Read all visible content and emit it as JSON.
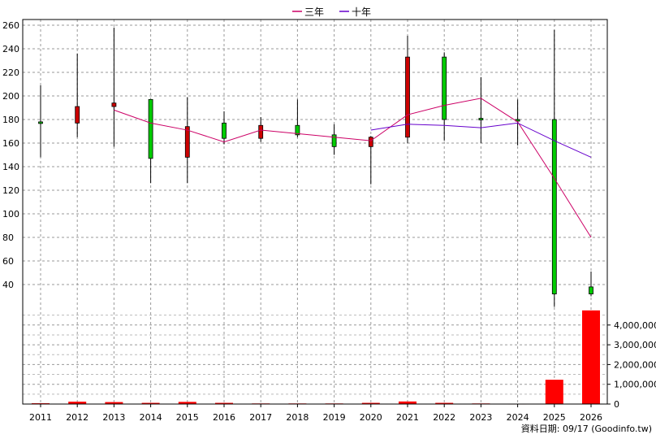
{
  "chart_data": {
    "type": "candlestick",
    "years": [
      "2011",
      "2012",
      "2013",
      "2014",
      "2015",
      "2016",
      "2017",
      "2018",
      "2019",
      "2020",
      "2021",
      "2022",
      "2023",
      "2024",
      "2025",
      "2026"
    ],
    "price_axis": {
      "ylim": [
        20,
        262
      ],
      "ticks": [
        40,
        60,
        80,
        100,
        120,
        140,
        160,
        180,
        200,
        220,
        240,
        260
      ]
    },
    "volume_axis": {
      "ylim": [
        0,
        5400000
      ],
      "ticks": [
        0,
        1000000,
        2000000,
        3000000,
        4000000
      ],
      "tick_labels": [
        "0",
        "1,000,000",
        "2,000,000",
        "3,000,000",
        "4,000,000"
      ]
    },
    "candles": [
      {
        "year": "2011",
        "open": 178,
        "close": 177,
        "high": 209,
        "low": 148,
        "color": "#00cc00"
      },
      {
        "year": "2012",
        "open": 177,
        "close": 191,
        "high": 236,
        "low": 165,
        "color": "#cc0000"
      },
      {
        "year": "2013",
        "open": 191,
        "close": 194,
        "high": 258,
        "low": 157,
        "color": "#cc0000"
      },
      {
        "year": "2014",
        "open": 197,
        "close": 147,
        "high": 197,
        "low": 126,
        "color": "#00cc00"
      },
      {
        "year": "2015",
        "open": 148,
        "close": 174,
        "high": 199,
        "low": 126,
        "color": "#cc0000"
      },
      {
        "year": "2016",
        "open": 177,
        "close": 164,
        "high": 187,
        "low": 159,
        "color": "#00cc00"
      },
      {
        "year": "2017",
        "open": 164,
        "close": 175,
        "high": 182,
        "low": 161,
        "color": "#cc0000"
      },
      {
        "year": "2018",
        "open": 175,
        "close": 167,
        "high": 197,
        "low": 165,
        "color": "#00cc00"
      },
      {
        "year": "2019",
        "open": 167,
        "close": 157,
        "high": 176,
        "low": 150,
        "color": "#00cc00"
      },
      {
        "year": "2020",
        "open": 157,
        "close": 165,
        "high": 166,
        "low": 125,
        "color": "#cc0000"
      },
      {
        "year": "2021",
        "open": 165,
        "close": 233,
        "high": 251,
        "low": 160,
        "color": "#cc0000"
      },
      {
        "year": "2022",
        "open": 233,
        "close": 180,
        "high": 237,
        "low": 162,
        "color": "#00cc00"
      },
      {
        "year": "2023",
        "open": 181,
        "close": 180,
        "high": 216,
        "low": 160,
        "color": "#00cc00"
      },
      {
        "year": "2024",
        "open": 180,
        "close": 179,
        "high": 197,
        "low": 158,
        "color": "#00cc00"
      },
      {
        "year": "2025",
        "open": 180,
        "close": 32,
        "high": 256,
        "low": 21,
        "color": "#00cc00"
      },
      {
        "year": "2026",
        "open": 38,
        "close": 32,
        "high": 51,
        "low": 30,
        "color": "#00cc00"
      }
    ],
    "volume": [
      {
        "year": "2011",
        "value": 40000
      },
      {
        "year": "2012",
        "value": 120000
      },
      {
        "year": "2013",
        "value": 100000
      },
      {
        "year": "2014",
        "value": 60000
      },
      {
        "year": "2015",
        "value": 110000
      },
      {
        "year": "2016",
        "value": 60000
      },
      {
        "year": "2017",
        "value": 30000
      },
      {
        "year": "2018",
        "value": 30000
      },
      {
        "year": "2019",
        "value": 30000
      },
      {
        "year": "2020",
        "value": 60000
      },
      {
        "year": "2021",
        "value": 130000
      },
      {
        "year": "2022",
        "value": 60000
      },
      {
        "year": "2023",
        "value": 30000
      },
      {
        "year": "2024",
        "value": 20000
      },
      {
        "year": "2025",
        "value": 1230000
      },
      {
        "year": "2026",
        "value": 4740000
      }
    ],
    "volume_color": "#ff0000",
    "series": [
      {
        "name": "三年",
        "color": "#cc0066",
        "points": [
          [
            "2013",
            188
          ],
          [
            "2014",
            177
          ],
          [
            "2015",
            171
          ],
          [
            "2016",
            161
          ],
          [
            "2017",
            171
          ],
          [
            "2018",
            168
          ],
          [
            "2019",
            165
          ],
          [
            "2020",
            162
          ],
          [
            "2021",
            184
          ],
          [
            "2022",
            192
          ],
          [
            "2023",
            198
          ],
          [
            "2024",
            178
          ],
          [
            "2025",
            130
          ],
          [
            "2026",
            80
          ]
        ]
      },
      {
        "name": "十年",
        "color": "#6600cc",
        "points": [
          [
            "2020",
            171
          ],
          [
            "2021",
            176
          ],
          [
            "2022",
            175
          ],
          [
            "2023",
            173
          ],
          [
            "2024",
            177
          ],
          [
            "2025",
            162
          ],
          [
            "2026",
            148
          ]
        ]
      }
    ],
    "legend_position": "top-center",
    "grid": true
  },
  "footer_note": "資料日期: 09/17  (Goodinfo.tw)"
}
